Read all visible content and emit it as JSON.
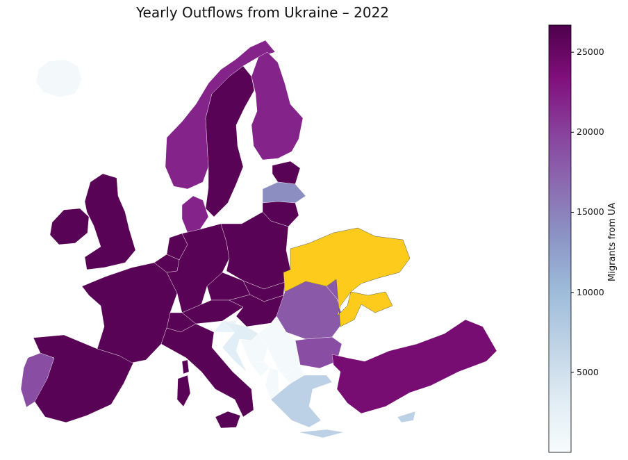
{
  "title": "Yearly Outflows from Ukraine – 2022",
  "colorbar": {
    "label": "Migrants from UA",
    "min": 0,
    "max": 26700,
    "ticks": [
      "25000",
      "20000",
      "15000",
      "10000",
      "5000"
    ],
    "colormap": "BuPu",
    "stops": [
      "#f7fcfd",
      "#e0ecf4",
      "#bfd3e6",
      "#9ebcda",
      "#8c96c6",
      "#8c6bb1",
      "#88419d",
      "#810f7c",
      "#4d004b"
    ]
  },
  "highlight": {
    "country": "Ukraine",
    "color": "#fdcb1c"
  },
  "map_data": [
    {
      "country": "Iceland",
      "value": 600
    },
    {
      "country": "Norway",
      "value": 22000
    },
    {
      "country": "Sweden",
      "value": 26000
    },
    {
      "country": "Finland",
      "value": 22000
    },
    {
      "country": "Estonia",
      "value": 26000
    },
    {
      "country": "Latvia",
      "value": 14000
    },
    {
      "country": "Lithuania",
      "value": 26000
    },
    {
      "country": "Denmark",
      "value": 22000
    },
    {
      "country": "Ireland",
      "value": 26000
    },
    {
      "country": "United Kingdom",
      "value": 26000
    },
    {
      "country": "Portugal",
      "value": 19000
    },
    {
      "country": "Spain",
      "value": 26000
    },
    {
      "country": "France",
      "value": 26000
    },
    {
      "country": "Belgium",
      "value": 26000
    },
    {
      "country": "Netherlands",
      "value": 26000
    },
    {
      "country": "Germany",
      "value": 26000
    },
    {
      "country": "Poland",
      "value": 26000
    },
    {
      "country": "Czechia",
      "value": 26000
    },
    {
      "country": "Slovakia",
      "value": 26000
    },
    {
      "country": "Austria",
      "value": 26000
    },
    {
      "country": "Switzerland",
      "value": 26000
    },
    {
      "country": "Hungary",
      "value": 26000
    },
    {
      "country": "Italy",
      "value": 26000
    },
    {
      "country": "Romania",
      "value": 18000
    },
    {
      "country": "Moldova",
      "value": 18000
    },
    {
      "country": "Bulgaria",
      "value": 19000
    },
    {
      "country": "Slovenia",
      "value": 2000
    },
    {
      "country": "Croatia",
      "value": 3000
    },
    {
      "country": "Bosnia and Herzegovina",
      "value": 500
    },
    {
      "country": "Serbia",
      "value": 500
    },
    {
      "country": "Montenegro",
      "value": 500
    },
    {
      "country": "Albania",
      "value": 500
    },
    {
      "country": "North Macedonia",
      "value": 500
    },
    {
      "country": "Greece",
      "value": 7000
    },
    {
      "country": "Turkey",
      "value": 24000
    },
    {
      "country": "Cyprus",
      "value": 7000
    }
  ]
}
